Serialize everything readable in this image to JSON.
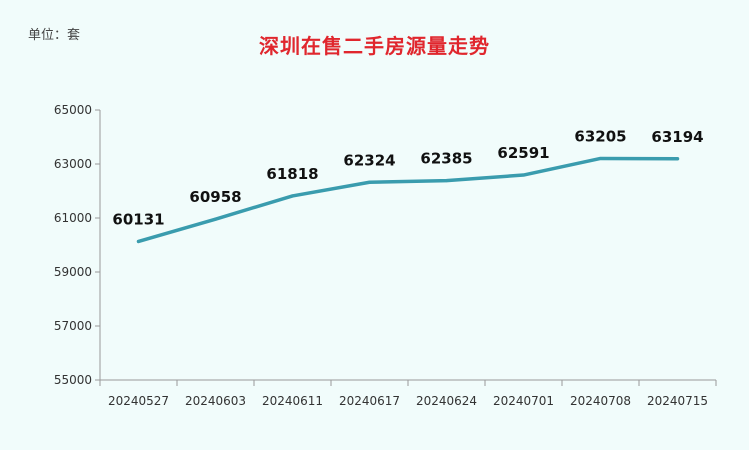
{
  "unit_label": "单位：套",
  "title": "深圳在售二手房源量走势",
  "colors": {
    "line": "#3a9cae",
    "title": "#e0262d",
    "background": "#f1fcfb",
    "axis": "#999999"
  },
  "chart_data": {
    "type": "line",
    "title": "深圳在售二手房源量走势",
    "xlabel": "",
    "ylabel": "",
    "unit": "单位：套",
    "categories": [
      "20240527",
      "20240603",
      "20240611",
      "20240617",
      "20240624",
      "20240701",
      "20240708",
      "20240715"
    ],
    "series": [
      {
        "values": [
          60131,
          60958,
          61818,
          62324,
          62385,
          62591,
          63205,
          63194
        ]
      }
    ],
    "ylim": [
      55000,
      65000
    ],
    "yticks": [
      55000,
      57000,
      59000,
      61000,
      63000,
      65000
    ],
    "grid": false,
    "legend": "none",
    "data_labels": true
  }
}
